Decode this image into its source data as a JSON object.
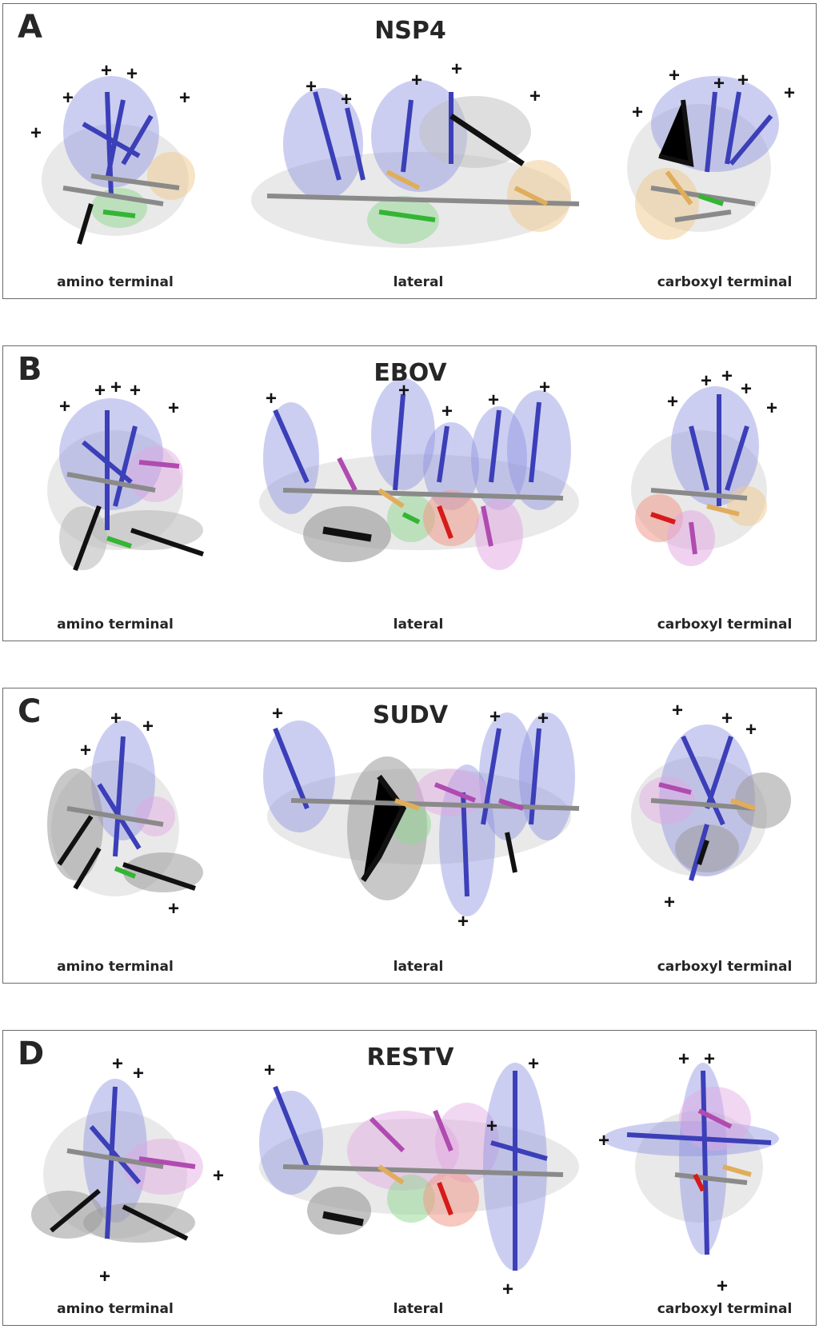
{
  "figure": {
    "panels": [
      {
        "letter": "A",
        "title": "NSP4",
        "views": [
          "amino terminal",
          "lateral",
          "carboxyl terminal"
        ]
      },
      {
        "letter": "B",
        "title": "EBOV",
        "views": [
          "amino terminal",
          "lateral",
          "carboxyl terminal"
        ]
      },
      {
        "letter": "C",
        "title": "SUDV",
        "views": [
          "amino terminal",
          "lateral",
          "carboxyl terminal"
        ]
      },
      {
        "letter": "D",
        "title": "RESTV",
        "views": [
          "amino terminal",
          "lateral",
          "carboxyl terminal"
        ]
      }
    ],
    "charge_mark": "+",
    "residue_colors": {
      "basic": "#3b3fb8",
      "hydrophobic": "#8a8a8a",
      "aromatic": "#111111",
      "polar": "#e0ad5c",
      "glycine": "#34b534",
      "acidic": "#d61a1a",
      "other": "#b04bb0"
    }
  }
}
